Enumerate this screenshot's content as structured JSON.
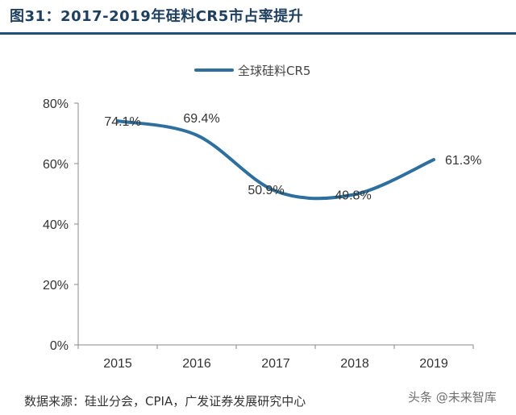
{
  "title": "图31：2017-2019年硅料CR5市占率提升",
  "source": "数据来源：硅业分会，CPIA，广发证券发展研究中心",
  "watermark": "头条 @未来智库",
  "colors": {
    "title": "#1f3f5e",
    "rule": "#1f4e79",
    "line": "#2e6f9e",
    "axis": "#888888"
  },
  "chart_data": {
    "type": "line",
    "x": [
      "2015",
      "2016",
      "2017",
      "2018",
      "2019"
    ],
    "series": [
      {
        "name": "全球硅料CR5",
        "values": [
          74.1,
          69.4,
          50.9,
          49.8,
          61.3
        ],
        "labels": [
          "74.1%",
          "69.4%",
          "50.9%",
          "49.8%",
          "61.3%"
        ]
      }
    ],
    "ylim": [
      0,
      80
    ],
    "yticks": [
      "0%",
      "20%",
      "40%",
      "60%",
      "80%"
    ],
    "ytick_values": [
      0,
      20,
      40,
      60,
      80
    ],
    "smooth": true,
    "grid": false,
    "legend": "top-center"
  }
}
